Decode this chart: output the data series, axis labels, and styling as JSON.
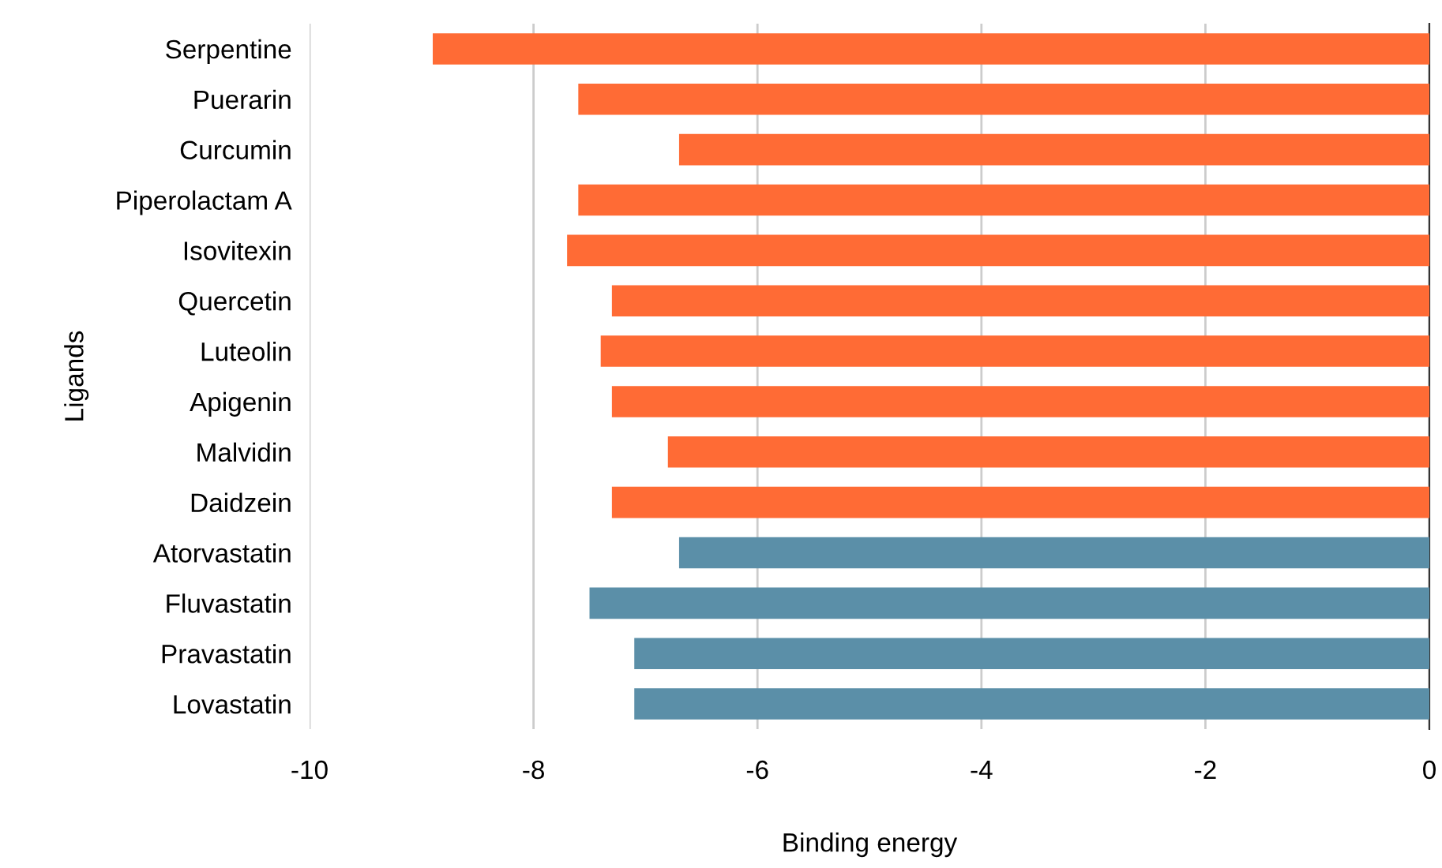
{
  "chart_data": {
    "type": "bar",
    "orientation": "horizontal",
    "xlabel": "Binding energy",
    "ylabel": "Ligands",
    "categories": [
      "Serpentine",
      "Puerarin",
      "Curcumin",
      "Piperolactam A",
      "Isovitexin",
      "Quercetin",
      "Luteolin",
      "Apigenin",
      "Malvidin",
      "Daidzein",
      "Atorvastatin",
      "Fluvastatin",
      "Pravastatin",
      "Lovastatin"
    ],
    "values": [
      -8.9,
      -7.6,
      -6.7,
      -7.6,
      -7.7,
      -7.3,
      -7.4,
      -7.3,
      -6.8,
      -7.3,
      -6.7,
      -7.5,
      -7.1,
      -7.1
    ],
    "colors": [
      "#ff6b35",
      "#ff6b35",
      "#ff6b35",
      "#ff6b35",
      "#ff6b35",
      "#ff6b35",
      "#ff6b35",
      "#ff6b35",
      "#ff6b35",
      "#ff6b35",
      "#5b8fa8",
      "#5b8fa8",
      "#5b8fa8",
      "#5b8fa8"
    ],
    "xlim": [
      -10,
      0
    ],
    "xticks": [
      -10,
      -8,
      -6,
      -4,
      -2,
      0
    ],
    "grid": "x"
  }
}
